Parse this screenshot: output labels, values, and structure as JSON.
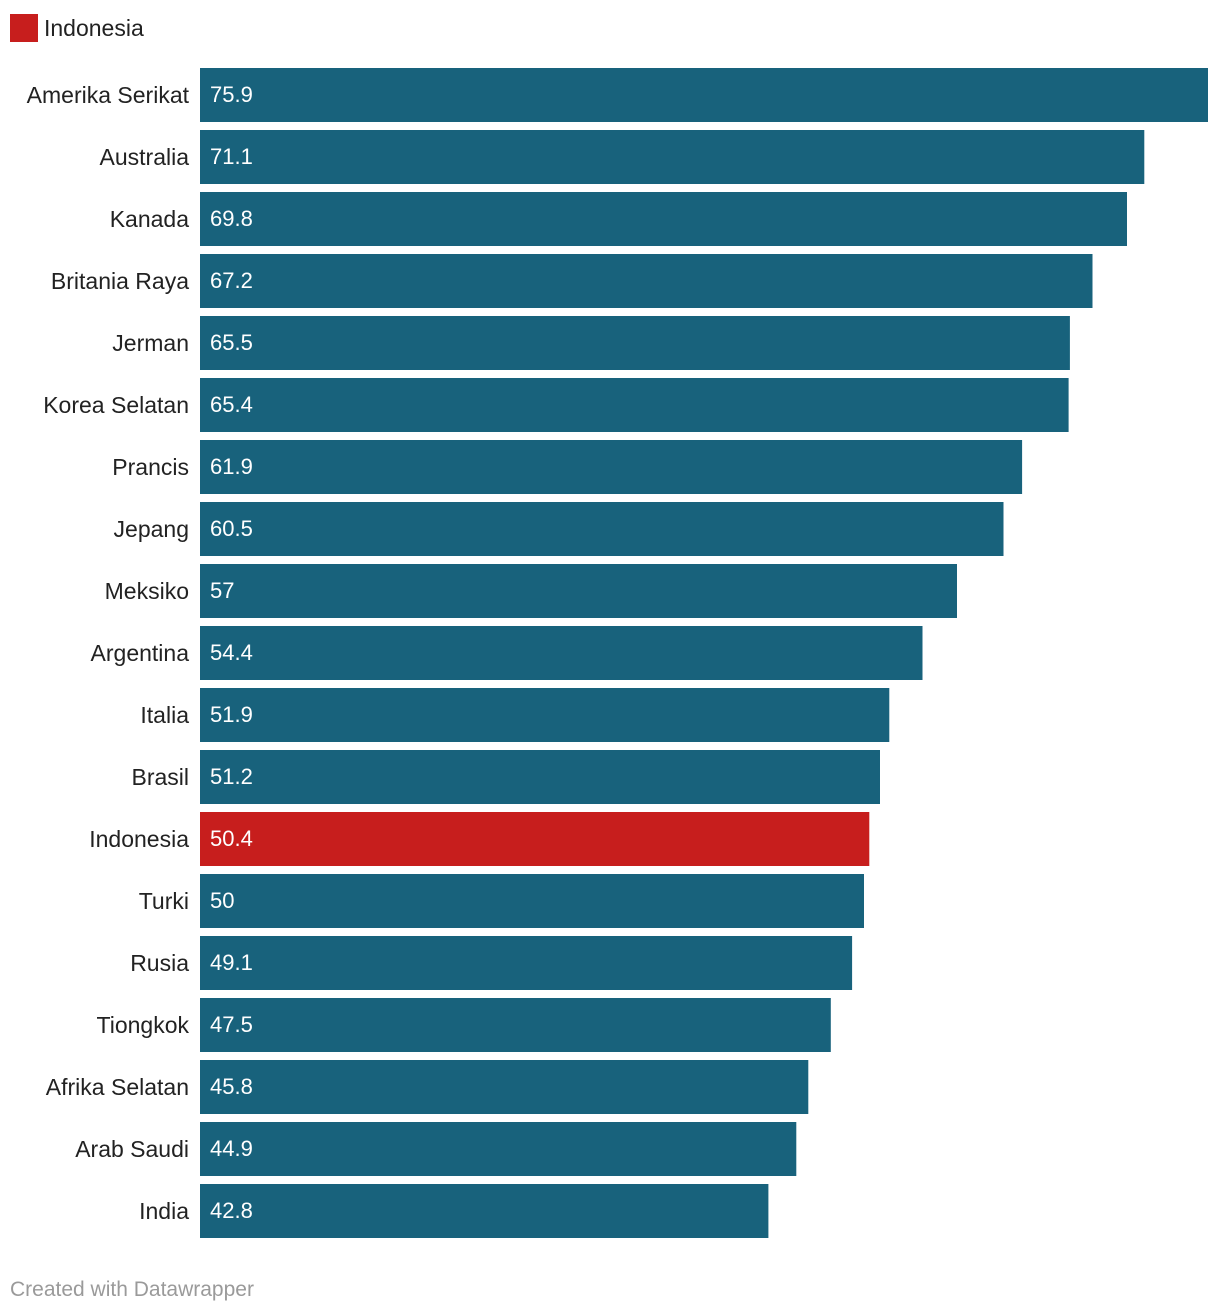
{
  "legend": {
    "label": "Indonesia",
    "color": "#c71e1d"
  },
  "footer": {
    "text": "Created with Datawrapper"
  },
  "colors": {
    "bar": "#18627c",
    "highlight": "#c71e1d",
    "label_text": "#222222",
    "value_text": "#ffffff"
  },
  "chart_data": {
    "type": "bar",
    "orientation": "horizontal",
    "categories": [
      "Amerika Serikat",
      "Australia",
      "Kanada",
      "Britania Raya",
      "Jerman",
      "Korea Selatan",
      "Prancis",
      "Jepang",
      "Meksiko",
      "Argentina",
      "Italia",
      "Brasil",
      "Indonesia",
      "Turki",
      "Rusia",
      "Tiongkok",
      "Afrika Selatan",
      "Arab Saudi",
      "India"
    ],
    "values": [
      75.9,
      71.1,
      69.8,
      67.2,
      65.5,
      65.4,
      61.9,
      60.5,
      57,
      54.4,
      51.9,
      51.2,
      50.4,
      50,
      49.1,
      47.5,
      45.8,
      44.9,
      42.8
    ],
    "value_labels": [
      "75.9",
      "71.1",
      "69.8",
      "67.2",
      "65.5",
      "65.4",
      "61.9",
      "60.5",
      "57",
      "54.4",
      "51.9",
      "51.2",
      "50.4",
      "50",
      "49.1",
      "47.5",
      "45.8",
      "44.9",
      "42.8"
    ],
    "highlight": "Indonesia",
    "xlim": [
      0,
      75.9
    ],
    "grid": false,
    "legend_position": "top-left"
  }
}
